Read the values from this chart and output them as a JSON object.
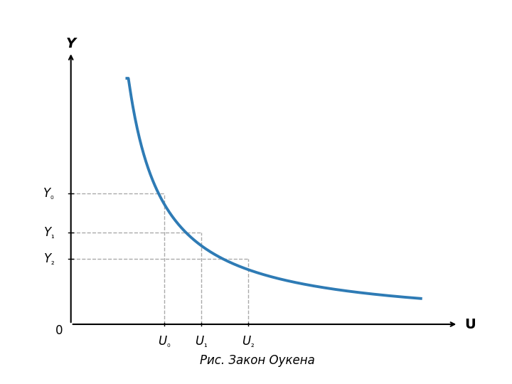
{
  "title": "Рис. Закон Оукена",
  "curve_color": "#2e7bb5",
  "curve_linewidth": 2.8,
  "grid_color": "#aaaaaa",
  "grid_linestyle": "--",
  "axis_color": "#000000",
  "background_color": "#ffffff",
  "x_label": "U",
  "y_label": "Y",
  "y_ticks_labels": [
    "Y₀",
    "Y₁",
    "Y₂"
  ],
  "x_ticks_labels": [
    "U₀",
    "U₁",
    "U₂"
  ],
  "x_ticks_vals": [
    2.0,
    2.8,
    3.8
  ],
  "y_ticks_vals": [
    4.0,
    2.8,
    2.0
  ],
  "x_range": [
    0,
    8
  ],
  "y_range": [
    0,
    8
  ],
  "curve_x_start": 1.2,
  "curve_x_end": 7.5,
  "hyperbola_k": 5.5
}
